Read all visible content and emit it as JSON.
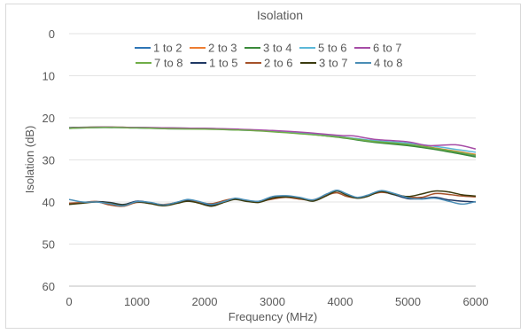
{
  "chart_data": {
    "type": "line",
    "title": "Isolation",
    "xlabel": "Frequency (MHz)",
    "ylabel": "Isolation (dB)",
    "xlim": [
      0,
      6000
    ],
    "ylim": [
      0,
      60
    ],
    "y_inverted": true,
    "x_ticks": [
      0,
      1000,
      2000,
      3000,
      4000,
      5000,
      6000
    ],
    "y_ticks": [
      0,
      10,
      20,
      30,
      40,
      50,
      60
    ],
    "grid": "horizontal",
    "legend_position": "top",
    "series": [
      {
        "name": "1 to 2",
        "color": "#2e75b6",
        "points": [
          [
            0,
            22.5
          ],
          [
            500,
            22.3
          ],
          [
            1000,
            22.4
          ],
          [
            1500,
            22.6
          ],
          [
            2000,
            22.6
          ],
          [
            2500,
            22.9
          ],
          [
            3000,
            23.2
          ],
          [
            3500,
            23.8
          ],
          [
            4000,
            24.6
          ],
          [
            4500,
            25.6
          ],
          [
            5000,
            26.4
          ],
          [
            5500,
            27.6
          ],
          [
            6000,
            29.0
          ]
        ]
      },
      {
        "name": "2 to 3",
        "color": "#ed7d31",
        "points": [
          [
            0,
            22.4
          ],
          [
            500,
            22.2
          ],
          [
            1000,
            22.3
          ],
          [
            1500,
            22.5
          ],
          [
            2000,
            22.6
          ],
          [
            2500,
            22.8
          ],
          [
            3000,
            23.1
          ],
          [
            3500,
            23.7
          ],
          [
            4000,
            24.5
          ],
          [
            4500,
            25.5
          ],
          [
            5000,
            26.3
          ],
          [
            5500,
            27.4
          ],
          [
            6000,
            28.7
          ]
        ]
      },
      {
        "name": "3 to 4",
        "color": "#3a8a3a",
        "points": [
          [
            0,
            22.3
          ],
          [
            500,
            22.2
          ],
          [
            1000,
            22.3
          ],
          [
            1500,
            22.4
          ],
          [
            2000,
            22.5
          ],
          [
            2500,
            22.8
          ],
          [
            3000,
            23.1
          ],
          [
            3500,
            23.8
          ],
          [
            4000,
            24.7
          ],
          [
            4500,
            25.8
          ],
          [
            5000,
            26.6
          ],
          [
            5500,
            27.8
          ],
          [
            6000,
            29.3
          ]
        ]
      },
      {
        "name": "5 to 6",
        "color": "#5bb8d8",
        "points": [
          [
            0,
            22.4
          ],
          [
            500,
            22.3
          ],
          [
            1000,
            22.3
          ],
          [
            1500,
            22.5
          ],
          [
            2000,
            22.6
          ],
          [
            2500,
            22.8
          ],
          [
            3000,
            23.2
          ],
          [
            3500,
            23.7
          ],
          [
            4000,
            24.5
          ],
          [
            4500,
            25.4
          ],
          [
            5000,
            26.0
          ],
          [
            5500,
            27.0
          ],
          [
            6000,
            28.2
          ]
        ]
      },
      {
        "name": "6 to 7",
        "color": "#a64ca6",
        "points": [
          [
            0,
            22.4
          ],
          [
            500,
            22.2
          ],
          [
            1000,
            22.3
          ],
          [
            1500,
            22.4
          ],
          [
            2000,
            22.5
          ],
          [
            2500,
            22.7
          ],
          [
            3000,
            23.0
          ],
          [
            3500,
            23.5
          ],
          [
            4000,
            24.2
          ],
          [
            4200,
            24.3
          ],
          [
            4500,
            25.1
          ],
          [
            5000,
            25.7
          ],
          [
            5300,
            26.6
          ],
          [
            5700,
            26.4
          ],
          [
            6000,
            27.4
          ]
        ]
      },
      {
        "name": "7 to 8",
        "color": "#70ad47",
        "points": [
          [
            0,
            22.5
          ],
          [
            500,
            22.3
          ],
          [
            1000,
            22.4
          ],
          [
            1500,
            22.6
          ],
          [
            2000,
            22.7
          ],
          [
            2500,
            22.9
          ],
          [
            3000,
            23.3
          ],
          [
            3500,
            23.9
          ],
          [
            4000,
            24.6
          ],
          [
            4500,
            25.6
          ],
          [
            5000,
            26.3
          ],
          [
            5500,
            27.5
          ],
          [
            6000,
            28.9
          ]
        ]
      },
      {
        "name": "1 to 5",
        "color": "#1f3864",
        "points": [
          [
            0,
            40.5
          ],
          [
            200,
            40.2
          ],
          [
            400,
            39.9
          ],
          [
            600,
            40.1
          ],
          [
            800,
            40.6
          ],
          [
            1000,
            39.8
          ],
          [
            1200,
            40.2
          ],
          [
            1400,
            40.8
          ],
          [
            1600,
            40.2
          ],
          [
            1750,
            39.6
          ],
          [
            1900,
            40.0
          ],
          [
            2100,
            40.8
          ],
          [
            2300,
            39.9
          ],
          [
            2450,
            39.3
          ],
          [
            2600,
            39.6
          ],
          [
            2800,
            40.0
          ],
          [
            3000,
            39.0
          ],
          [
            3200,
            38.7
          ],
          [
            3400,
            39.0
          ],
          [
            3600,
            39.7
          ],
          [
            3800,
            38.4
          ],
          [
            3950,
            37.4
          ],
          [
            4100,
            38.3
          ],
          [
            4250,
            39.0
          ],
          [
            4400,
            38.6
          ],
          [
            4600,
            37.6
          ],
          [
            4800,
            38.3
          ],
          [
            5000,
            39.2
          ],
          [
            5200,
            39.2
          ],
          [
            5400,
            38.9
          ],
          [
            5600,
            39.5
          ],
          [
            5800,
            39.8
          ],
          [
            6000,
            40.0
          ]
        ]
      },
      {
        "name": "2 to 6",
        "color": "#a5522a",
        "points": [
          [
            0,
            40.3
          ],
          [
            200,
            40.1
          ],
          [
            400,
            39.9
          ],
          [
            600,
            40.7
          ],
          [
            800,
            41.0
          ],
          [
            1000,
            40.1
          ],
          [
            1200,
            40.3
          ],
          [
            1400,
            40.6
          ],
          [
            1600,
            40.1
          ],
          [
            1750,
            39.8
          ],
          [
            1900,
            40.0
          ],
          [
            2100,
            40.4
          ],
          [
            2300,
            39.6
          ],
          [
            2450,
            39.2
          ],
          [
            2600,
            39.7
          ],
          [
            2800,
            39.9
          ],
          [
            3000,
            39.3
          ],
          [
            3200,
            38.9
          ],
          [
            3400,
            39.3
          ],
          [
            3600,
            39.5
          ],
          [
            3800,
            38.4
          ],
          [
            3950,
            37.8
          ],
          [
            4100,
            38.7
          ],
          [
            4250,
            39.0
          ],
          [
            4400,
            38.5
          ],
          [
            4600,
            37.7
          ],
          [
            4800,
            38.1
          ],
          [
            5000,
            38.8
          ],
          [
            5200,
            38.9
          ],
          [
            5400,
            38.0
          ],
          [
            5600,
            38.2
          ],
          [
            5800,
            38.6
          ],
          [
            6000,
            38.8
          ]
        ]
      },
      {
        "name": "3 to 7",
        "color": "#3b3b0e",
        "points": [
          [
            0,
            40.6
          ],
          [
            200,
            40.3
          ],
          [
            400,
            40.0
          ],
          [
            600,
            40.2
          ],
          [
            800,
            40.7
          ],
          [
            1000,
            40.0
          ],
          [
            1200,
            40.4
          ],
          [
            1400,
            40.9
          ],
          [
            1600,
            40.3
          ],
          [
            1750,
            39.8
          ],
          [
            1900,
            40.2
          ],
          [
            2100,
            41.0
          ],
          [
            2300,
            40.0
          ],
          [
            2450,
            39.4
          ],
          [
            2600,
            39.8
          ],
          [
            2800,
            40.1
          ],
          [
            3000,
            39.1
          ],
          [
            3200,
            38.8
          ],
          [
            3400,
            39.1
          ],
          [
            3600,
            39.8
          ],
          [
            3800,
            38.5
          ],
          [
            3950,
            37.4
          ],
          [
            4100,
            38.4
          ],
          [
            4250,
            39.1
          ],
          [
            4400,
            38.7
          ],
          [
            4600,
            37.5
          ],
          [
            4800,
            38.2
          ],
          [
            5000,
            38.7
          ],
          [
            5200,
            38.1
          ],
          [
            5400,
            37.4
          ],
          [
            5600,
            37.6
          ],
          [
            5800,
            38.3
          ],
          [
            6000,
            38.6
          ]
        ]
      },
      {
        "name": "4 to 8",
        "color": "#4a8db5",
        "points": [
          [
            0,
            39.4
          ],
          [
            200,
            40.0
          ],
          [
            400,
            40.0
          ],
          [
            600,
            40.4
          ],
          [
            800,
            40.9
          ],
          [
            1000,
            39.9
          ],
          [
            1200,
            40.1
          ],
          [
            1400,
            40.7
          ],
          [
            1600,
            40.0
          ],
          [
            1750,
            39.4
          ],
          [
            1900,
            39.8
          ],
          [
            2100,
            40.6
          ],
          [
            2300,
            39.8
          ],
          [
            2450,
            39.1
          ],
          [
            2600,
            39.5
          ],
          [
            2800,
            39.8
          ],
          [
            3000,
            38.7
          ],
          [
            3200,
            38.5
          ],
          [
            3400,
            38.9
          ],
          [
            3600,
            39.5
          ],
          [
            3800,
            38.1
          ],
          [
            3950,
            37.2
          ],
          [
            4100,
            38.1
          ],
          [
            4250,
            38.9
          ],
          [
            4400,
            38.4
          ],
          [
            4600,
            37.3
          ],
          [
            4800,
            38.0
          ],
          [
            5000,
            39.0
          ],
          [
            5200,
            39.3
          ],
          [
            5400,
            39.1
          ],
          [
            5600,
            39.8
          ],
          [
            5800,
            40.5
          ],
          [
            6000,
            39.9
          ]
        ]
      }
    ]
  }
}
